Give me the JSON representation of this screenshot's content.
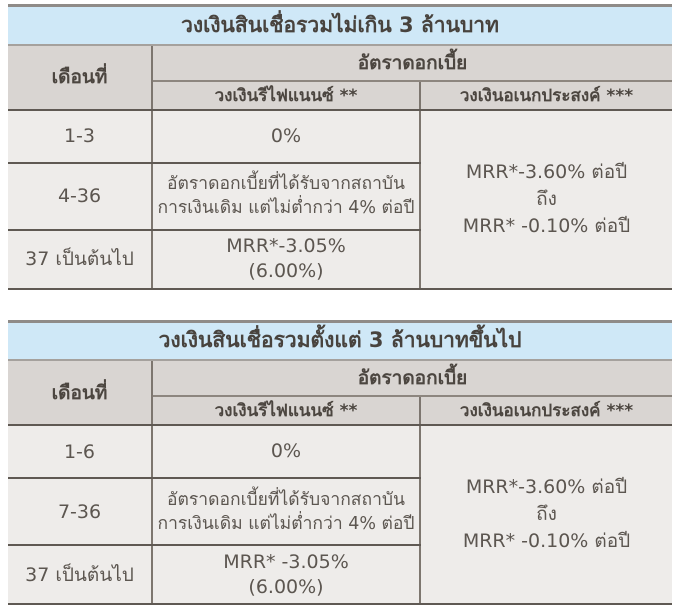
{
  "colors": {
    "title_bg": "#cfe8f7",
    "header_bg": "#d9d5d2",
    "cell_bg": "#eeecea",
    "title_text": "#48433e",
    "cell_text": "#5c5650",
    "rule_dark": "#5f5953",
    "rule_vertical": "#7d766f",
    "rule_light": "#a5a19d"
  },
  "tables": [
    {
      "title": "วงเงินสินเชื่อรวมไม่เกิน 3 ล้านบาท",
      "col_month": "เดือนที่",
      "col_rate": "อัตราดอกเบี้ย",
      "col_refinance": "วงเงินรีไฟแนนซ์ **",
      "col_multipurpose": "วงเงินอเนกประสงค์ ***",
      "rows": [
        {
          "month": "1-3",
          "line1": "0%",
          "line2": ""
        },
        {
          "month": "4-36",
          "line1": "อัตราดอกเบี้ยที่ได้รับจากสถาบัน",
          "line2": "การเงินเดิม แต่ไม่ต่ำกว่า 4% ต่อปี"
        },
        {
          "month": "37 เป็นต้นไป",
          "line1": "MRR*-3.05%",
          "line2": "(6.00%)"
        }
      ],
      "multipurpose_lines": [
        "MRR*-3.60% ต่อปี",
        "ถึง",
        "MRR* -0.10% ต่อปี"
      ]
    },
    {
      "title": "วงเงินสินเชื่อรวมตั้งแต่ 3 ล้านบาทขึ้นไป",
      "col_month": "เดือนที่",
      "col_rate": "อัตราดอกเบี้ย",
      "col_refinance": "วงเงินรีไฟแนนซ์ **",
      "col_multipurpose": "วงเงินอเนกประสงค์ ***",
      "rows": [
        {
          "month": "1-6",
          "line1": "0%",
          "line2": ""
        },
        {
          "month": "7-36",
          "line1": "อัตราดอกเบี้ยที่ได้รับจากสถาบัน",
          "line2": "การเงินเดิม แต่ไม่ต่ำกว่า 4% ต่อปี"
        },
        {
          "month": "37 เป็นต้นไป",
          "line1": "MRR* -3.05%",
          "line2": "(6.00%)"
        }
      ],
      "multipurpose_lines": [
        "MRR*-3.60% ต่อปี",
        "ถึง",
        "MRR* -0.10% ต่อปี"
      ]
    }
  ]
}
